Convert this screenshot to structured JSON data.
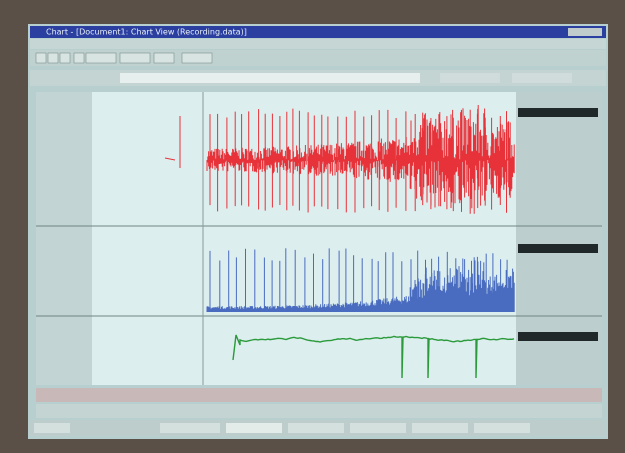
{
  "window": {
    "title": "Chart - [Document1: Chart View (Recording.data)]"
  }
}
